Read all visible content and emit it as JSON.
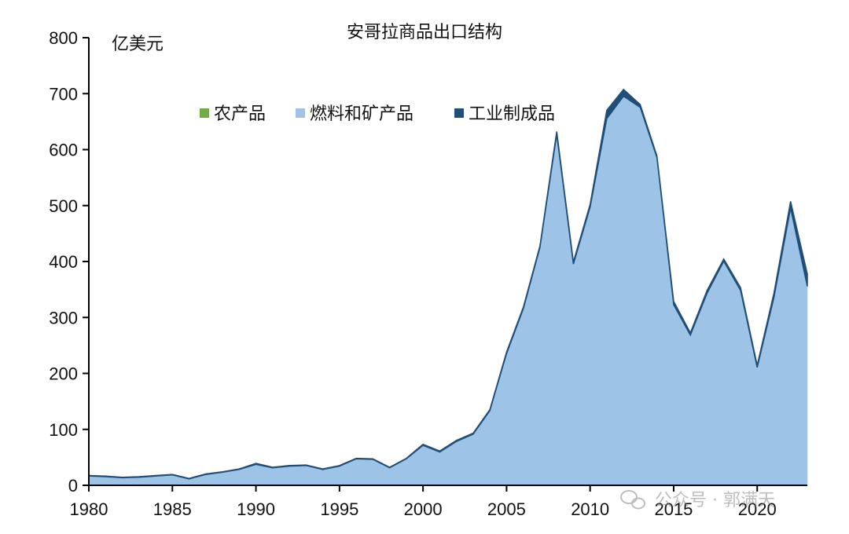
{
  "chart_data": {
    "type": "area",
    "stacked": true,
    "title": "安哥拉商品出口结构",
    "ylabel": "亿美元",
    "xlabel": "",
    "ylim": [
      0,
      800
    ],
    "xlim": [
      1980,
      2023
    ],
    "yticks": [
      0,
      100,
      200,
      300,
      400,
      500,
      600,
      700,
      800
    ],
    "xticks": [
      1980,
      1985,
      1990,
      1995,
      2000,
      2005,
      2010,
      2015,
      2020
    ],
    "grid": false,
    "legend_position": "top-center",
    "x": [
      1980,
      1981,
      1982,
      1983,
      1984,
      1985,
      1986,
      1987,
      1988,
      1989,
      1990,
      1991,
      1992,
      1993,
      1994,
      1995,
      1996,
      1997,
      1998,
      1999,
      2000,
      2001,
      2002,
      2003,
      2004,
      2005,
      2006,
      2007,
      2008,
      2009,
      2010,
      2011,
      2012,
      2013,
      2014,
      2015,
      2016,
      2017,
      2018,
      2019,
      2020,
      2021,
      2022,
      2023
    ],
    "series": [
      {
        "name": "农产品",
        "color": "#70ad47",
        "values": [
          0.5,
          0.5,
          0.5,
          0.5,
          0.5,
          0.5,
          0.3,
          0.3,
          0.3,
          0.3,
          0.3,
          0.3,
          0.3,
          0.3,
          0.3,
          0.3,
          0.3,
          0.3,
          0.3,
          0.3,
          0.3,
          0.3,
          0.3,
          0.3,
          0.3,
          0.3,
          0.3,
          0.3,
          0.3,
          0.3,
          0.3,
          0.5,
          0.5,
          0.5,
          0.5,
          0.5,
          0.5,
          0.5,
          0.5,
          0.5,
          0.5,
          0.5,
          0.5,
          0.5
        ]
      },
      {
        "name": "燃料和矿产品",
        "color": "#9dc3e6",
        "values": [
          16,
          15,
          13,
          14,
          16,
          18,
          11,
          19,
          23,
          28,
          37,
          31,
          34,
          35,
          28,
          34,
          47,
          46,
          31,
          47,
          71,
          59,
          78,
          91,
          133,
          235,
          315,
          425,
          627,
          395,
          497,
          655,
          695,
          675,
          585,
          322,
          268,
          343,
          400,
          348,
          210,
          335,
          495,
          355
        ]
      },
      {
        "name": "工业制成品",
        "color": "#1f4e79",
        "values": [
          1,
          1,
          1,
          1,
          1,
          1,
          1,
          1,
          1,
          1,
          2,
          1,
          1,
          1,
          1,
          1,
          1,
          1,
          1,
          1,
          2,
          2,
          2,
          2,
          2,
          3,
          3,
          3,
          5,
          4,
          5,
          15,
          12,
          5,
          3,
          6,
          4,
          5,
          4,
          5,
          4,
          8,
          12,
          22
        ]
      }
    ]
  },
  "watermark": "公众号 · 郭满天"
}
